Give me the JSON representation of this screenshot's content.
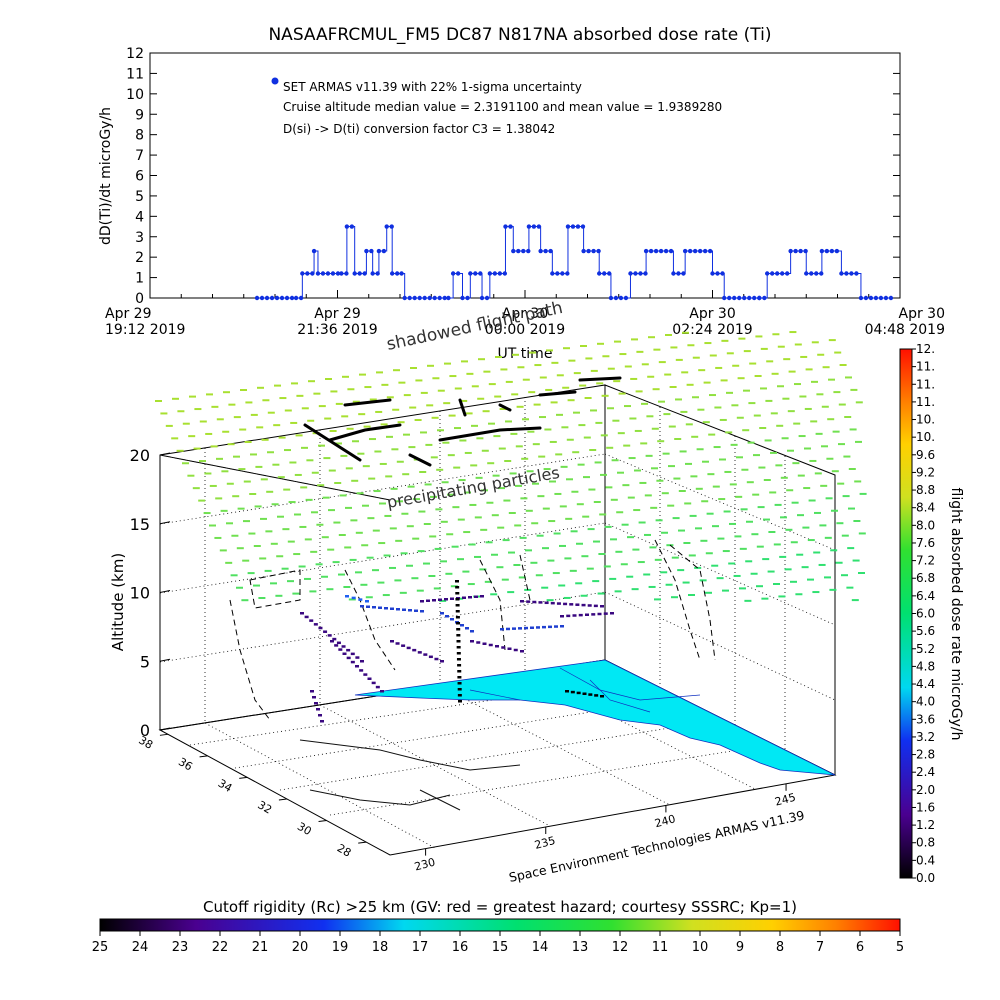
{
  "chart_data": [
    {
      "type": "line",
      "title": "NASAAFRCMUL_FM5 DC87 N817NA absorbed dose rate (Ti)",
      "xlabel": "UT time",
      "ylabel": "dD(Ti)/dt microGy/h",
      "ylim": [
        0,
        12
      ],
      "yticks": [
        "0",
        "1",
        "2",
        "3",
        "4",
        "5",
        "6",
        "7",
        "8",
        "9",
        "10",
        "11",
        "12"
      ],
      "xticks": [
        {
          "line1": "Apr 29",
          "line2": "19:12 2019"
        },
        {
          "line1": "Apr 29",
          "line2": "21:36 2019"
        },
        {
          "line1": "Apr 30",
          "line2": "00:00 2019"
        },
        {
          "line1": "Apr 30",
          "line2": "02:24 2019"
        },
        {
          "line1": "Apr 30",
          "line2": "04:48 2019"
        }
      ],
      "x_hours_range": [
        19.2,
        28.8
      ],
      "annotations": [
        "SET ARMAS v11.39 with 22% 1-sigma uncertainty",
        "Cruise altitude median value = 2.3191100 and mean value = 1.9389280",
        "D(si) -> D(ti) conversion factor C3 = 1.38042"
      ],
      "series": [
        {
          "name": "SET ARMAS v11.39",
          "color": "#1030e0",
          "segments_hours_value": [
            [
              20.57,
              0.0
            ],
            [
              21.07,
              0.0
            ],
            [
              21.15,
              1.2
            ],
            [
              21.3,
              2.3
            ],
            [
              21.35,
              1.2
            ],
            [
              21.65,
              1.2
            ],
            [
              21.72,
              3.5
            ],
            [
              21.82,
              1.2
            ],
            [
              21.97,
              2.3
            ],
            [
              22.05,
              1.2
            ],
            [
              22.13,
              2.3
            ],
            [
              22.23,
              3.5
            ],
            [
              22.3,
              1.2
            ],
            [
              22.42,
              1.2
            ],
            [
              22.46,
              0.0
            ],
            [
              23.02,
              0.0
            ],
            [
              23.08,
              1.2
            ],
            [
              23.2,
              0.0
            ],
            [
              23.3,
              1.2
            ],
            [
              23.45,
              0.0
            ],
            [
              23.55,
              1.2
            ],
            [
              23.75,
              3.5
            ],
            [
              23.85,
              2.3
            ],
            [
              24.05,
              3.5
            ],
            [
              24.2,
              2.3
            ],
            [
              24.35,
              1.2
            ],
            [
              24.55,
              3.5
            ],
            [
              24.75,
              2.3
            ],
            [
              24.95,
              1.2
            ],
            [
              25.1,
              0.0
            ],
            [
              25.35,
              1.2
            ],
            [
              25.55,
              2.3
            ],
            [
              25.9,
              1.2
            ],
            [
              26.05,
              2.3
            ],
            [
              26.4,
              1.2
            ],
            [
              26.55,
              0.0
            ],
            [
              27.0,
              0.0
            ],
            [
              27.1,
              1.2
            ],
            [
              27.4,
              2.3
            ],
            [
              27.6,
              1.2
            ],
            [
              27.8,
              2.3
            ],
            [
              28.05,
              1.2
            ],
            [
              28.3,
              0.0
            ],
            [
              28.7,
              0.0
            ]
          ]
        }
      ]
    },
    {
      "type": "scatter",
      "title": "",
      "zlabel": "Altitude (km)",
      "zticks": [
        "0",
        "5",
        "10",
        "15",
        "20"
      ],
      "lat_ticks": [
        "38",
        "36",
        "34",
        "32",
        "30",
        "28"
      ],
      "lon_ticks": [
        "230",
        "235",
        "240",
        "245"
      ],
      "annotations": [
        "shadowed flight path",
        "precipitating particles",
        "Space Environment Technologies ARMAS v11.39"
      ],
      "color_scale": {
        "label": "flight absorbed dose rate microGy/h",
        "range": [
          0.0,
          12.0
        ],
        "ticks": [
          "0.0",
          "0.4",
          "0.8",
          "1.2",
          "1.6",
          "2.0",
          "2.4",
          "2.8",
          "3.2",
          "3.6",
          "4.0",
          "4.4",
          "4.8",
          "5.2",
          "5.6",
          "6.0",
          "6.4",
          "6.8",
          "7.2",
          "7.6",
          "8.0",
          "8.4",
          "8.8",
          "9.2",
          "9.6",
          "10.",
          "10.",
          "11.",
          "11.",
          "11.",
          "12."
        ]
      }
    },
    {
      "type": "heatmap",
      "title": "Cutoff rigidity (Rc) >25 km (GV: red = greatest hazard; courtesy SSSRC; Kp=1)",
      "ticks": [
        "25",
        "24",
        "23",
        "22",
        "21",
        "20",
        "19",
        "18",
        "17",
        "16",
        "15",
        "14",
        "13",
        "12",
        "11",
        "10",
        "9",
        "8",
        "7",
        "6",
        "5"
      ]
    }
  ]
}
